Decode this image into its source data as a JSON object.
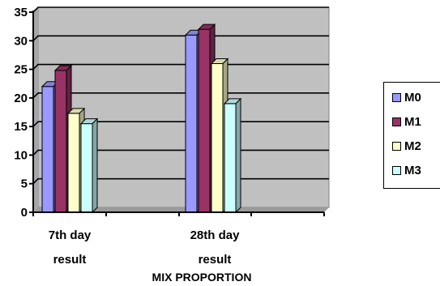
{
  "chart_data": {
    "type": "bar",
    "categories": [
      "7th day result",
      "28th day result"
    ],
    "category_lines": [
      [
        "7th day",
        "result"
      ],
      [
        "28th day",
        "result"
      ]
    ],
    "series": [
      {
        "name": "M0",
        "values": [
          22,
          31
        ],
        "color": "#9999ff"
      },
      {
        "name": "M1",
        "values": [
          24.8,
          32
        ],
        "color": "#993366"
      },
      {
        "name": "M2",
        "values": [
          17.3,
          26
        ],
        "color": "#ffffcc"
      },
      {
        "name": "M3",
        "values": [
          15.5,
          19
        ],
        "color": "#ccffff"
      }
    ],
    "yticks": [
      0,
      5,
      10,
      15,
      20,
      25,
      30,
      35
    ],
    "ylim": [
      0,
      35
    ],
    "xlabel": "MIX PROPORTION",
    "ylabel": "",
    "title": "",
    "grid": true,
    "plot_background": "#c0c0c0",
    "legend": "right"
  }
}
